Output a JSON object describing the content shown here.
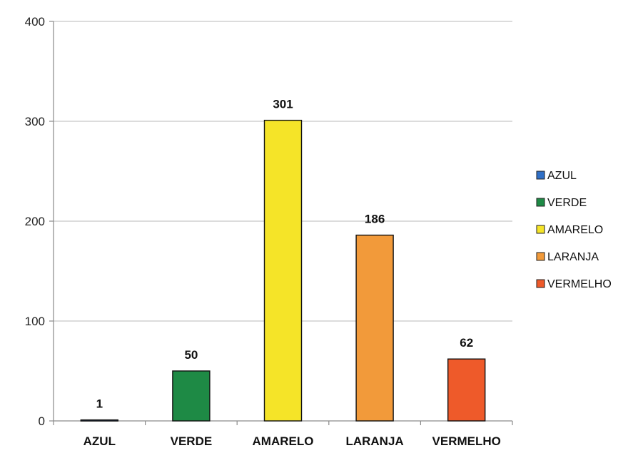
{
  "chart_data": {
    "type": "bar",
    "title": "",
    "xlabel": "",
    "ylabel": "",
    "categories": [
      "AZUL",
      "VERDE",
      "AMARELO",
      "LARANJA",
      "VERMELHO"
    ],
    "values": [
      1,
      50,
      301,
      186,
      62
    ],
    "colors": [
      "#2f6fc6",
      "#1e8a45",
      "#f5e428",
      "#f29a3a",
      "#ee5a2a"
    ],
    "ylim": [
      0,
      400
    ],
    "yticks": [
      0,
      100,
      200,
      300,
      400
    ],
    "grid": true,
    "legend": {
      "placement": "right",
      "entries": [
        "AZUL",
        "VERDE",
        "AMARELO",
        "LARANJA",
        "VERMELHO"
      ]
    },
    "data_labels": true
  }
}
